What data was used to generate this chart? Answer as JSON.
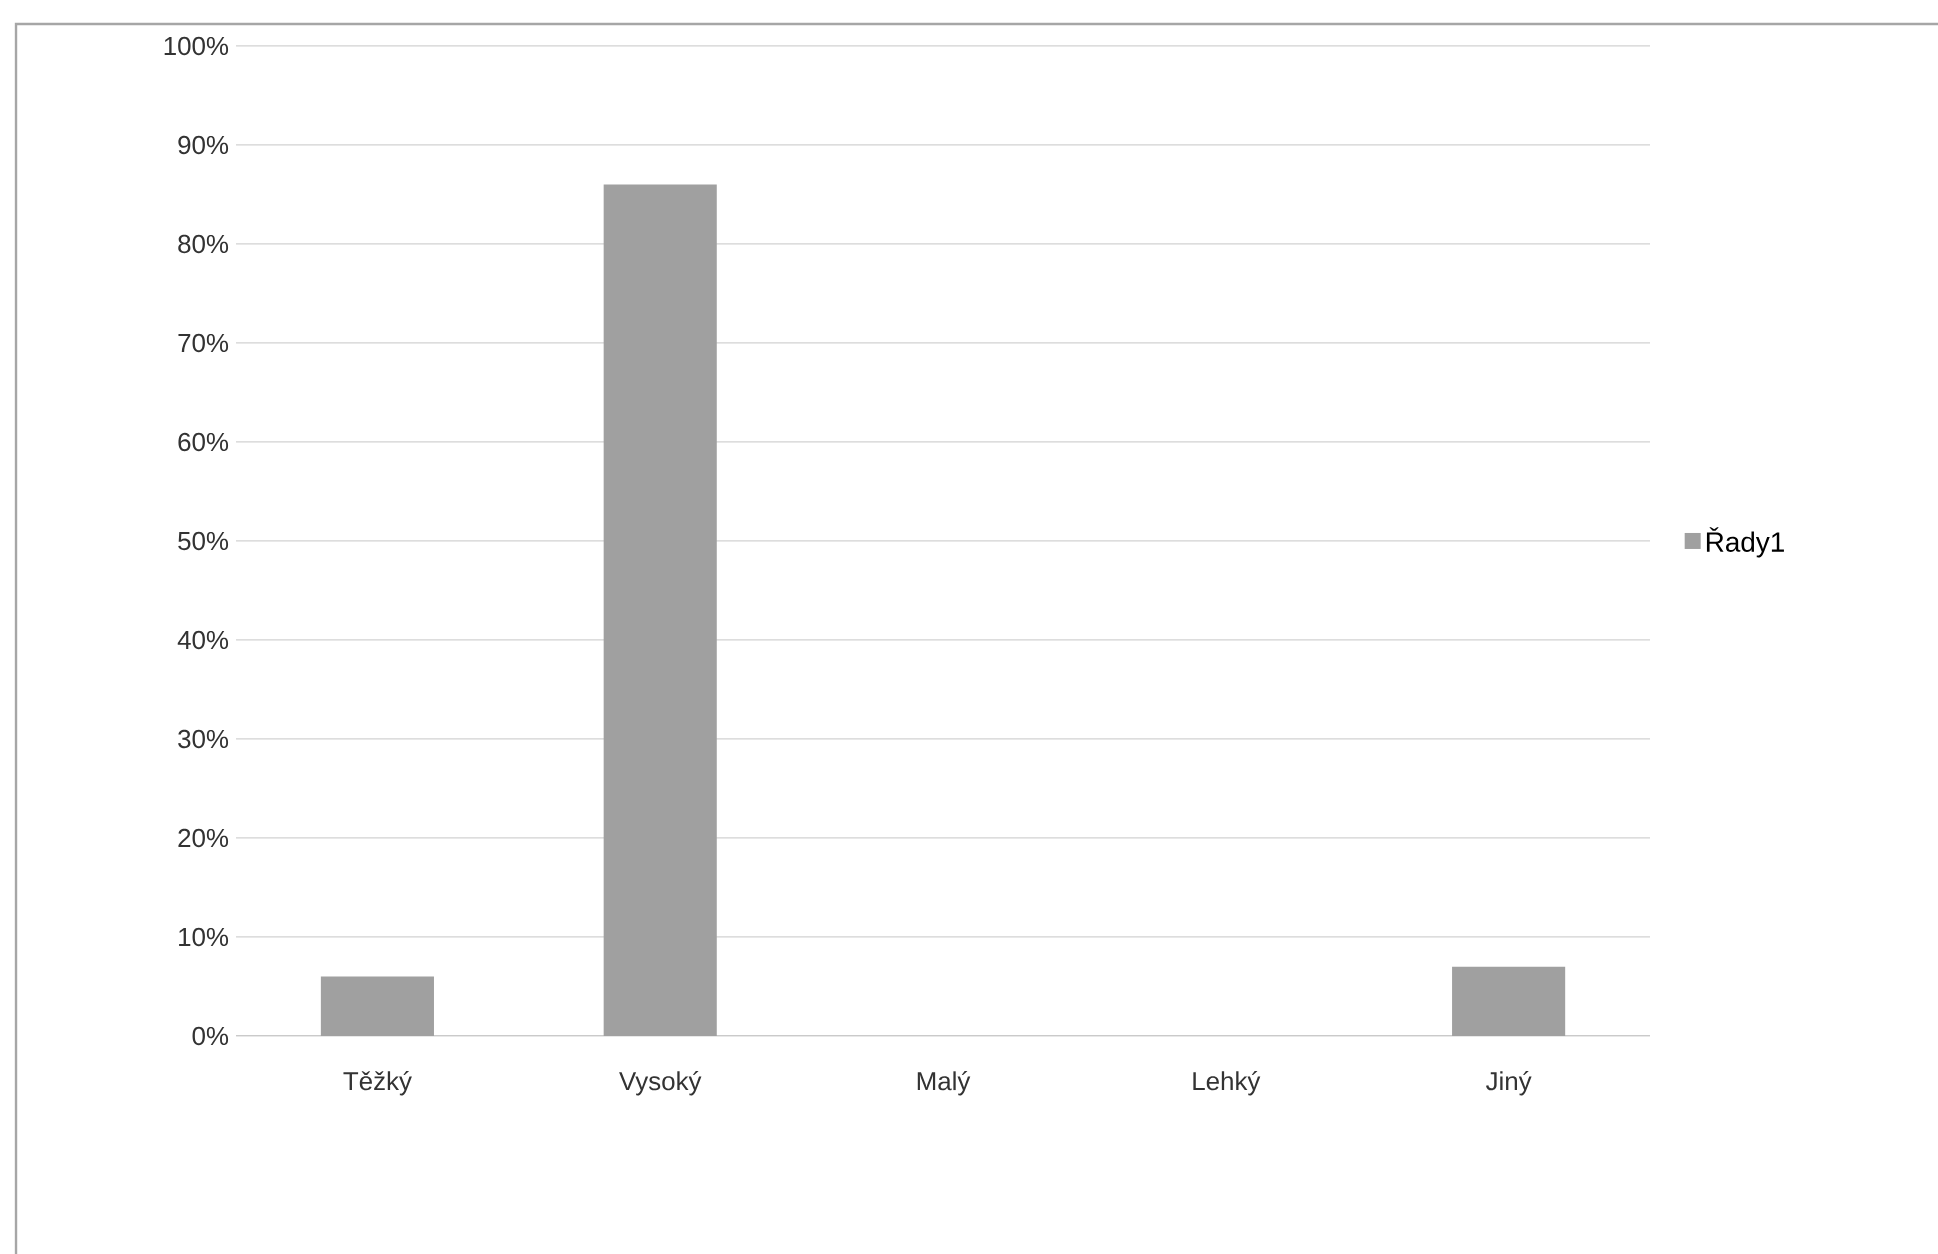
{
  "chart_data": {
    "type": "bar",
    "categories": [
      "Těžký",
      "Vysoký",
      "Malý",
      "Lehký",
      "Jiný"
    ],
    "series": [
      {
        "name": "Řady1",
        "color": "#a0a0a0",
        "values": [
          6,
          86,
          0,
          0,
          7
        ]
      }
    ],
    "ylim": [
      0,
      100
    ],
    "yticks": [
      {
        "value": 0,
        "label": "0%"
      },
      {
        "value": 10,
        "label": "10%"
      },
      {
        "value": 20,
        "label": "20%"
      },
      {
        "value": 30,
        "label": "30%"
      },
      {
        "value": 40,
        "label": "40%"
      },
      {
        "value": 50,
        "label": "50%"
      },
      {
        "value": 60,
        "label": "60%"
      },
      {
        "value": 70,
        "label": "70%"
      },
      {
        "value": 80,
        "label": "80%"
      },
      {
        "value": 90,
        "label": "90%"
      },
      {
        "value": 100,
        "label": "100%"
      }
    ],
    "grid": "y",
    "legend": "right"
  }
}
